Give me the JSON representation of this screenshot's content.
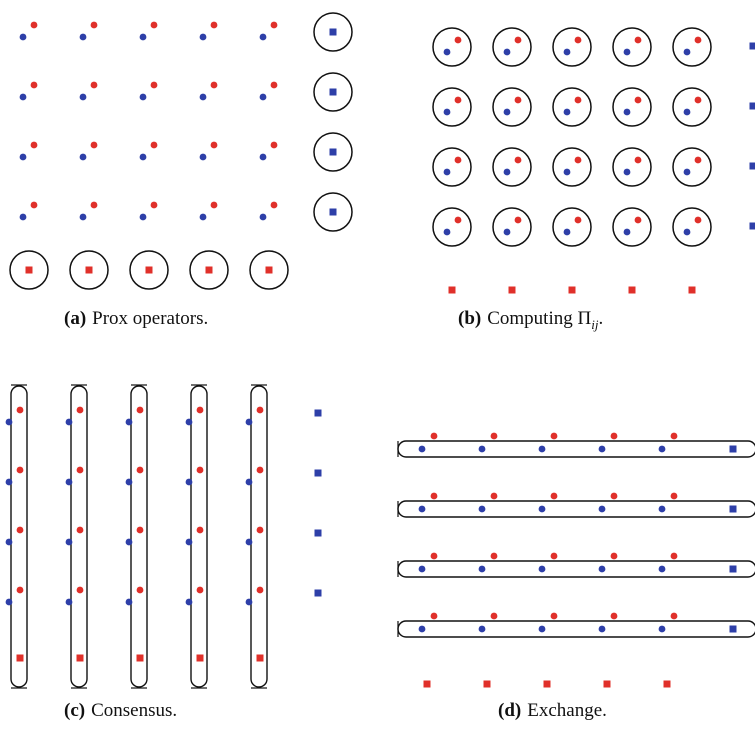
{
  "panels": [
    {
      "id": "a",
      "tag": "(a)",
      "caption": "Prox operators."
    },
    {
      "id": "b",
      "tag": "(b)",
      "caption_pre": "Computing ",
      "caption_sym": "Π",
      "caption_sub": "ij",
      "caption_post": "."
    },
    {
      "id": "c",
      "tag": "(c)",
      "caption": "Consensus."
    },
    {
      "id": "d",
      "tag": "(d)",
      "caption": "Exchange."
    }
  ],
  "colors": {
    "blue": "#2e3fa8",
    "red": "#e0302a",
    "outline": "#111111"
  }
}
